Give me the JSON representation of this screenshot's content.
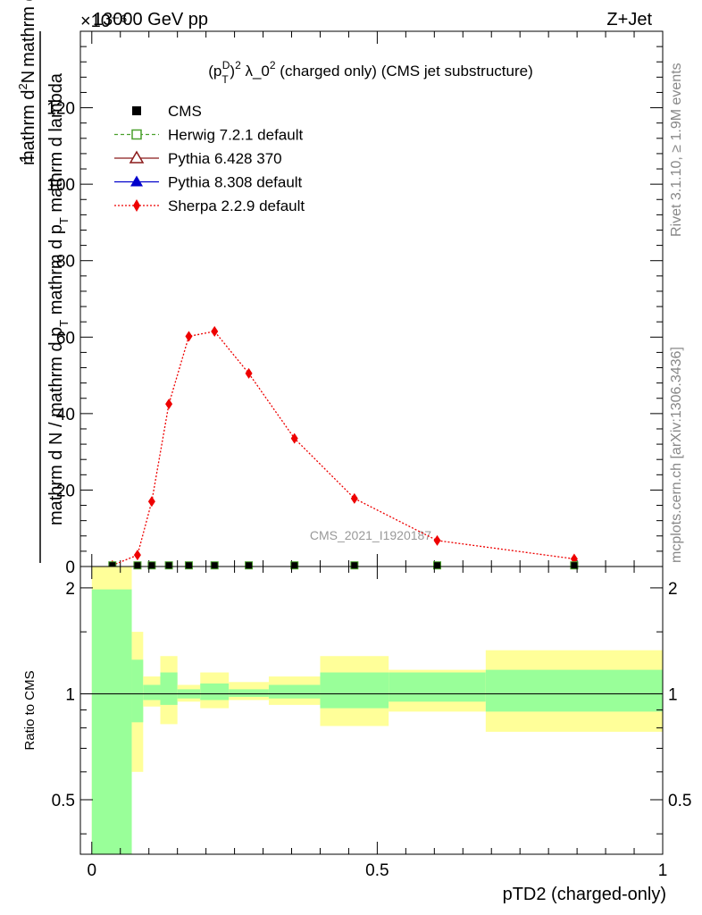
{
  "header": {
    "energy": "13000 GeV pp",
    "process": "Z+Jet",
    "exponent": "×10⁻⁶"
  },
  "side_labels": {
    "rivet": "Rivet 3.1.10, ≥ 1.9M events",
    "mcplots": "mcplots.cern.ch [arXiv:1306.3436]"
  },
  "chart_data": [
    {
      "type": "line",
      "title_main": "(p",
      "title_sup_D": "D",
      "title_sub_T": "T",
      "title_pow": ")",
      "title_sup_2": "2",
      "title_rest": " λ_0",
      "title_sup_2b": "2",
      "title_tail": " (charged only) (CMS jet substructure)",
      "ylabel_num": "1",
      "ylabel_den": "mathrm d N / mathrm d p",
      "ylabel_den_sub": "T",
      "ylabel_den_tail": " mathrm d p",
      "ylabel_den_sub2": "T",
      "ylabel_den_tail2": " mathrm d lambda",
      "ylabel_top": "mathrm d",
      "ylabel_top_sup": "2",
      "ylabel_top_tail": "N",
      "watermark": "CMS_2021_I1920187",
      "ylim": [
        0,
        140
      ],
      "xlim": [
        -0.02,
        1.0
      ],
      "yticks": [
        "0",
        "20",
        "40",
        "60",
        "80",
        "100",
        "120"
      ],
      "ytick_values": [
        0,
        20,
        40,
        60,
        80,
        100,
        120
      ],
      "legend": [
        {
          "name": "CMS",
          "color": "#000000",
          "marker": "square-filled",
          "line": "none"
        },
        {
          "name": "Herwig 7.2.1 default",
          "color": "#4aa02c",
          "marker": "square-open",
          "line": "dashed"
        },
        {
          "name": "Pythia 6.428 370",
          "color": "#8b1a1a",
          "marker": "triangle-open",
          "line": "solid"
        },
        {
          "name": "Pythia 8.308 default",
          "color": "#0000cc",
          "marker": "triangle-filled",
          "line": "solid"
        },
        {
          "name": "Sherpa 2.2.9 default",
          "color": "#ee0000",
          "marker": "diamond-filled",
          "line": "dotted"
        }
      ],
      "series": [
        {
          "name": "Sherpa 2.2.9 default",
          "x": [
            0.036,
            0.08,
            0.105,
            0.135,
            0.17,
            0.215,
            0.275,
            0.355,
            0.46,
            0.605,
            0.845
          ],
          "y": [
            0.3,
            3.0,
            17.0,
            42.5,
            60.2,
            61.5,
            50.5,
            33.5,
            17.8,
            6.8,
            2.0
          ]
        },
        {
          "name": "CMS",
          "x": [
            0.036,
            0.08,
            0.105,
            0.135,
            0.17,
            0.215,
            0.275,
            0.355,
            0.46,
            0.605,
            0.845
          ],
          "y": [
            0.3,
            0.3,
            0.3,
            0.3,
            0.3,
            0.3,
            0.3,
            0.3,
            0.3,
            0.3,
            0.3
          ]
        }
      ]
    },
    {
      "type": "area",
      "ylabel": "Ratio to CMS",
      "xlabel": "pTD2 (charged-only)",
      "ylim": [
        0.35,
        2.3
      ],
      "xlim": [
        -0.02,
        1.0
      ],
      "yticks": [
        "0.5",
        "1",
        "2"
      ],
      "ytick_values": [
        0.5,
        1,
        2
      ],
      "xticks": [
        "0",
        "0.5",
        "1"
      ],
      "xtick_values": [
        0,
        0.5,
        1
      ],
      "bands": [
        {
          "x0": 0.0,
          "x1": 0.07,
          "yellow": [
            0.35,
            2.3
          ],
          "green": [
            0.35,
            1.98
          ]
        },
        {
          "x0": 0.07,
          "x1": 0.09,
          "yellow": [
            0.6,
            1.5
          ],
          "green": [
            0.83,
            1.25
          ]
        },
        {
          "x0": 0.09,
          "x1": 0.12,
          "yellow": [
            0.92,
            1.12
          ],
          "green": [
            0.96,
            1.06
          ]
        },
        {
          "x0": 0.12,
          "x1": 0.15,
          "yellow": [
            0.82,
            1.28
          ],
          "green": [
            0.93,
            1.15
          ]
        },
        {
          "x0": 0.15,
          "x1": 0.19,
          "yellow": [
            0.95,
            1.06
          ],
          "green": [
            0.97,
            1.03
          ]
        },
        {
          "x0": 0.19,
          "x1": 0.24,
          "yellow": [
            0.91,
            1.15
          ],
          "green": [
            0.96,
            1.07
          ]
        },
        {
          "x0": 0.24,
          "x1": 0.31,
          "yellow": [
            0.96,
            1.08
          ],
          "green": [
            0.98,
            1.03
          ]
        },
        {
          "x0": 0.31,
          "x1": 0.4,
          "yellow": [
            0.93,
            1.12
          ],
          "green": [
            0.97,
            1.06
          ]
        },
        {
          "x0": 0.4,
          "x1": 0.52,
          "yellow": [
            0.81,
            1.28
          ],
          "green": [
            0.91,
            1.15
          ]
        },
        {
          "x0": 0.52,
          "x1": 0.69,
          "yellow": [
            0.89,
            1.17
          ],
          "green": [
            0.95,
            1.15
          ]
        },
        {
          "x0": 0.69,
          "x1": 1.0,
          "yellow": [
            0.78,
            1.33
          ],
          "green": [
            0.89,
            1.17
          ]
        }
      ]
    }
  ]
}
